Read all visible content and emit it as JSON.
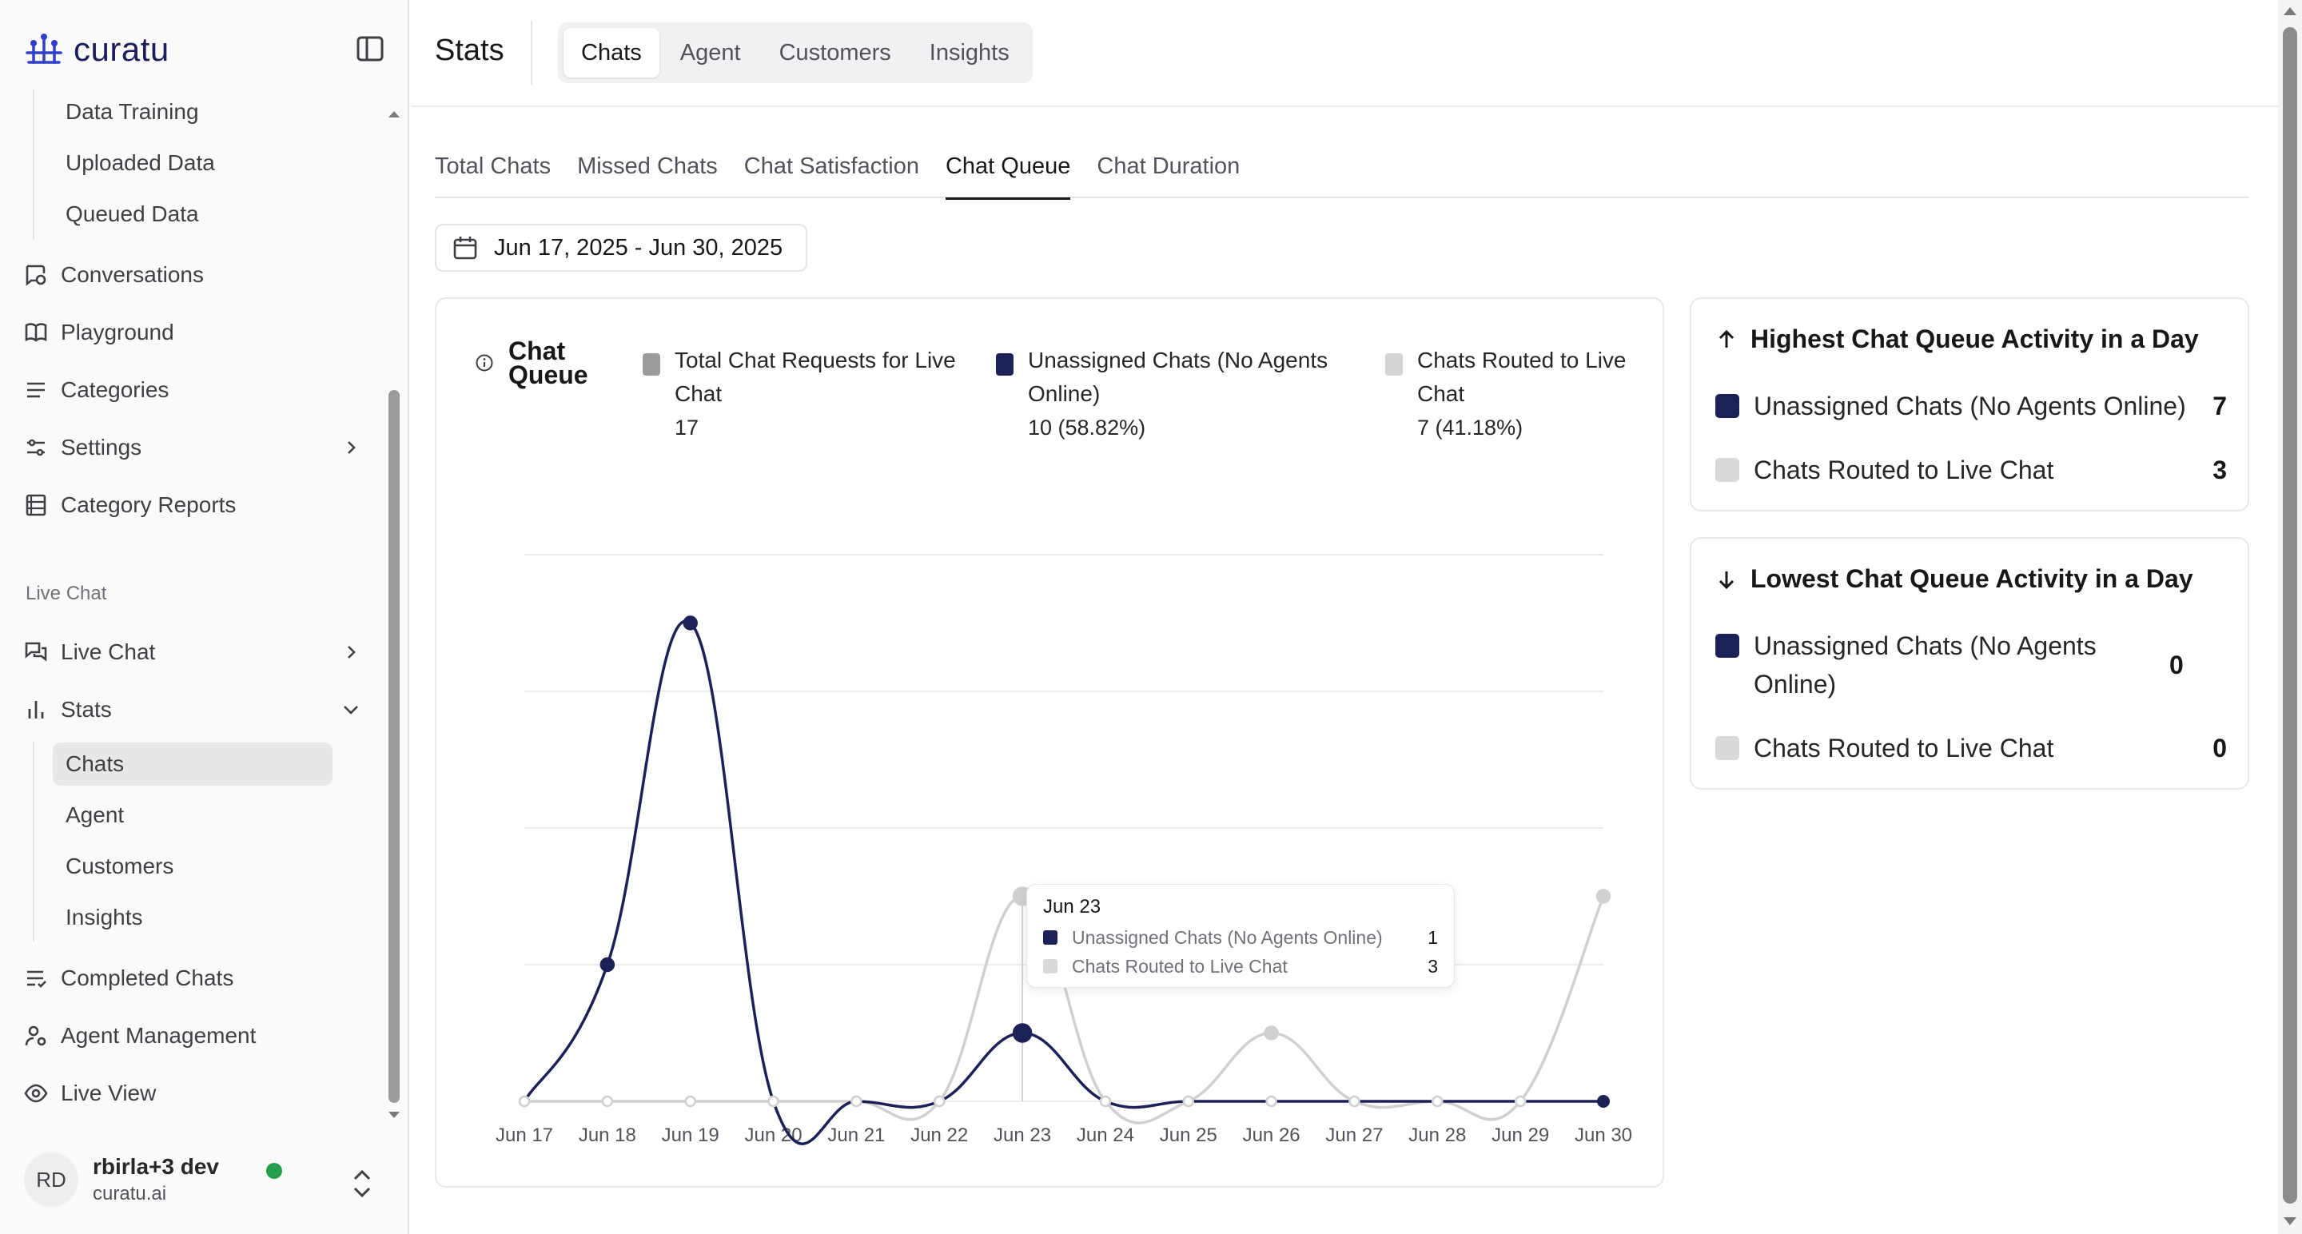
{
  "brand": {
    "name": "curatu"
  },
  "sidebar": {
    "sub_top": [
      "Data Training",
      "Uploaded Data",
      "Queued Data"
    ],
    "items_top": [
      {
        "label": "Conversations",
        "icon": "conversations-icon"
      },
      {
        "label": "Playground",
        "icon": "book-icon"
      },
      {
        "label": "Categories",
        "icon": "list-icon"
      },
      {
        "label": "Settings",
        "icon": "settings-sliders-icon"
      },
      {
        "label": "Category Reports",
        "icon": "report-icon"
      }
    ],
    "section_label": "Live Chat",
    "live_chat": "Live Chat",
    "stats": "Stats",
    "stats_sub": [
      "Chats",
      "Agent",
      "Customers",
      "Insights"
    ],
    "items_bottom": [
      {
        "label": "Completed Chats",
        "icon": "list-check-icon"
      },
      {
        "label": "Agent Management",
        "icon": "user-gear-icon"
      },
      {
        "label": "Live View",
        "icon": "eye-icon"
      }
    ],
    "user": {
      "initials": "RD",
      "name": "rbirla+3 dev",
      "org": "curatu.ai"
    }
  },
  "header": {
    "title": "Stats",
    "tabs": [
      "Chats",
      "Agent",
      "Customers",
      "Insights"
    ],
    "active_tab": "Chats"
  },
  "subtabs": [
    "Total Chats",
    "Missed Chats",
    "Chat Satisfaction",
    "Chat Queue",
    "Chat Duration"
  ],
  "date_range": "Jun 17, 2025 - Jun 30, 2025",
  "colors": {
    "unassigned": "#1c2157",
    "routed": "#d4d4d4",
    "total": "#9b9b9b"
  },
  "chart_card": {
    "title": "Chat Queue",
    "legend": [
      {
        "label": "Total Chat Requests for Live Chat",
        "value": "17",
        "color": "#9b9b9b"
      },
      {
        "label": "Unassigned Chats (No Agents Online)",
        "value": "10 (58.82%)",
        "color": "#1c2157"
      },
      {
        "label": "Chats Routed to Live Chat",
        "value": "7 (41.18%)",
        "color": "#d4d4d4"
      }
    ]
  },
  "chart_data": {
    "type": "line",
    "x": [
      "Jun 17",
      "Jun 18",
      "Jun 19",
      "Jun 20",
      "Jun 21",
      "Jun 22",
      "Jun 23",
      "Jun 24",
      "Jun 25",
      "Jun 26",
      "Jun 27",
      "Jun 28",
      "Jun 29",
      "Jun 30"
    ],
    "series": [
      {
        "name": "Unassigned Chats (No Agents Online)",
        "values": [
          0,
          2,
          7,
          0,
          0,
          0,
          1,
          0,
          0,
          0,
          0,
          0,
          0,
          0
        ],
        "color": "#1c2157"
      },
      {
        "name": "Chats Routed to Live Chat",
        "values": [
          0,
          0,
          0,
          0,
          0,
          0,
          3,
          0,
          0,
          1,
          0,
          0,
          0,
          3
        ],
        "color": "#d4d4d4"
      }
    ],
    "ylim": [
      0,
      8
    ],
    "grid": true,
    "tooltip": {
      "date": "Jun 23",
      "rows": [
        {
          "label": "Unassigned Chats (No Agents Online)",
          "value": "1"
        },
        {
          "label": "Chats Routed to Live Chat",
          "value": "3"
        }
      ]
    }
  },
  "highest": {
    "title": "Highest Chat Queue Activity in a Day",
    "rows": [
      {
        "label": "Unassigned Chats (No Agents Online)",
        "value": "7"
      },
      {
        "label": "Chats Routed to Live Chat",
        "value": "3"
      }
    ]
  },
  "lowest": {
    "title": "Lowest Chat Queue Activity in a Day",
    "rows": [
      {
        "label": "Unassigned Chats (No Agents Online)",
        "value": "0"
      },
      {
        "label": "Chats Routed to Live Chat",
        "value": "0"
      }
    ]
  }
}
